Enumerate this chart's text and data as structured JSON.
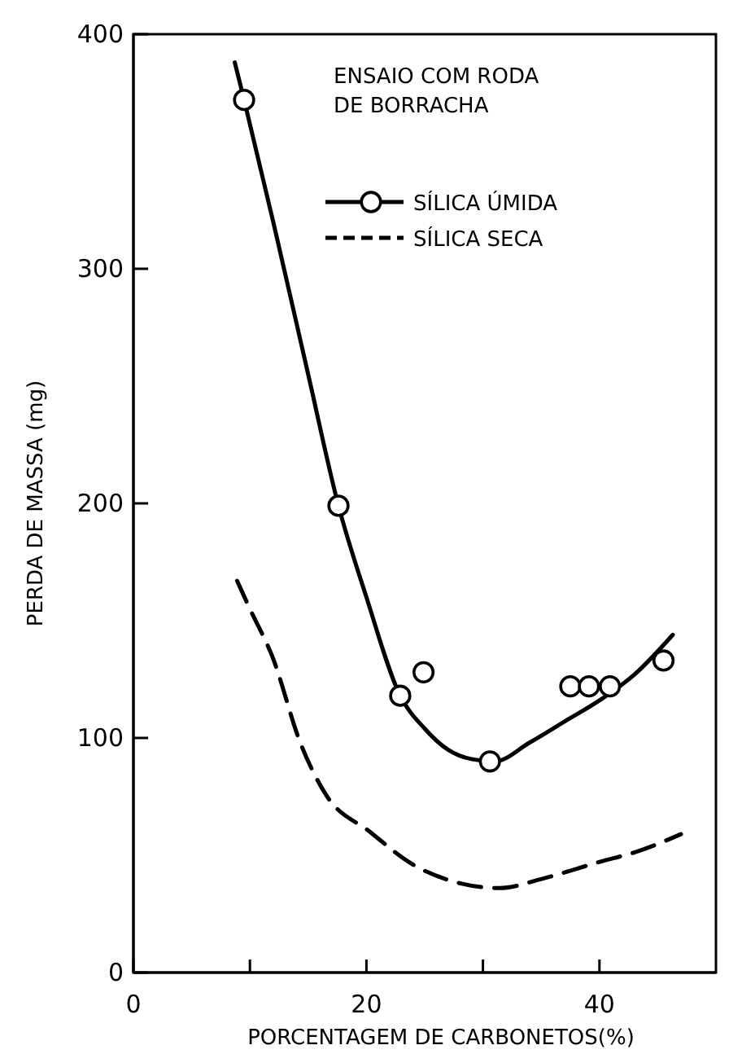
{
  "chart_data": {
    "type": "line",
    "xlabel": "PORCENTAGEM DE CARBONETOS(%)",
    "ylabel": "PERDA DE MASSA (mg)",
    "legend_title": "ENSAIO COM RODA DE BORRACHA",
    "legend": "top right",
    "grid": false,
    "xlim": [
      0,
      50
    ],
    "ylim": [
      0,
      400
    ],
    "xticks": [
      0,
      {
        "value": 10,
        "label": null
      },
      20,
      {
        "value": 30,
        "label": null
      },
      40
    ],
    "yticks": [
      0,
      100,
      200,
      300,
      400
    ],
    "series": [
      {
        "name": "SÍLICA ÚMIDA",
        "type": "scatter",
        "marker": "circle",
        "color": "#000000",
        "x": [
          9.5,
          17.6,
          22.9,
          24.9,
          30.6,
          37.5,
          39.1,
          40.9,
          45.5
        ],
        "values": [
          372,
          199,
          118,
          128,
          90,
          122,
          122,
          122,
          133
        ]
      },
      {
        "marker": "none",
        "line_style": "solid",
        "color": "#000000",
        "x": [
          8.7,
          9.5,
          12,
          15,
          17.6,
          20,
          22.9,
          25,
          27,
          29,
          31,
          34,
          37,
          40,
          43,
          46.3
        ],
        "values": [
          388,
          372,
          320,
          255,
          199,
          160,
          118,
          104,
          95,
          91,
          90,
          98,
          107,
          116,
          127,
          144
        ]
      },
      {
        "name": "SÍLICA SECA",
        "marker": "none",
        "line_style": "dashed",
        "color": "#000000",
        "x": [
          8.9,
          10,
          11.9,
          14.4,
          16.5,
          20.3,
          24,
          28.1,
          31.4,
          35.1,
          39.9,
          43.5,
          47
        ],
        "values": [
          167,
          155,
          135,
          97,
          76,
          60,
          46,
          38,
          36,
          40,
          47,
          52,
          59
        ]
      }
    ]
  }
}
